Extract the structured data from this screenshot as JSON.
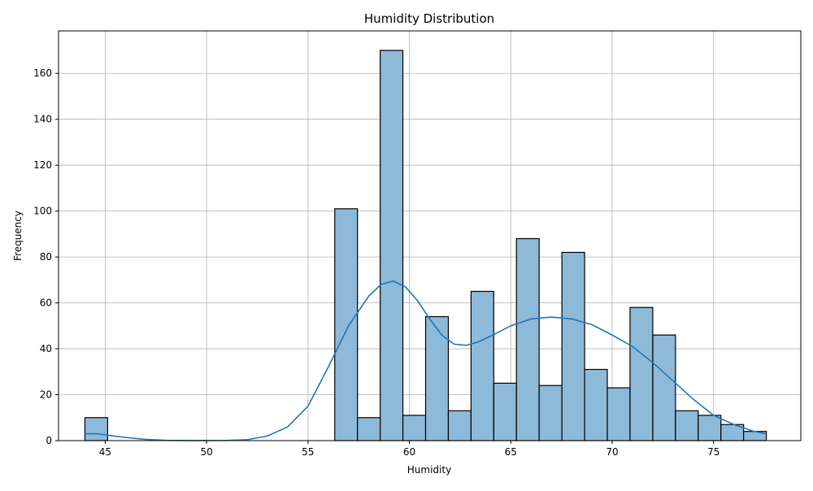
{
  "chart_data": {
    "type": "bar",
    "subtype": "histogram",
    "title": "Humidity Distribution",
    "xlabel": "Humidity",
    "ylabel": "Frequency",
    "xlim": [
      42.7,
      79.3
    ],
    "ylim": [
      0,
      178.5
    ],
    "x_ticks": [
      45,
      50,
      55,
      60,
      65,
      70,
      75
    ],
    "y_ticks": [
      0,
      20,
      40,
      60,
      80,
      100,
      120,
      140,
      160
    ],
    "grid": true,
    "bar_color": "#8ebad9",
    "line_color": "#1f77b4",
    "bins": [
      {
        "x0": 44.0,
        "x1": 45.12,
        "count": 10
      },
      {
        "x0": 45.12,
        "x1": 46.24,
        "count": 0
      },
      {
        "x0": 46.24,
        "x1": 47.36,
        "count": 0
      },
      {
        "x0": 47.36,
        "x1": 48.48,
        "count": 0
      },
      {
        "x0": 48.48,
        "x1": 49.6,
        "count": 0
      },
      {
        "x0": 49.6,
        "x1": 50.72,
        "count": 0
      },
      {
        "x0": 50.72,
        "x1": 51.84,
        "count": 0
      },
      {
        "x0": 51.84,
        "x1": 52.96,
        "count": 0
      },
      {
        "x0": 52.96,
        "x1": 54.08,
        "count": 0
      },
      {
        "x0": 54.08,
        "x1": 55.2,
        "count": 0
      },
      {
        "x0": 55.2,
        "x1": 56.32,
        "count": 0
      },
      {
        "x0": 56.32,
        "x1": 57.44,
        "count": 101
      },
      {
        "x0": 57.44,
        "x1": 58.56,
        "count": 10
      },
      {
        "x0": 58.56,
        "x1": 59.68,
        "count": 170
      },
      {
        "x0": 59.68,
        "x1": 60.8,
        "count": 11
      },
      {
        "x0": 60.8,
        "x1": 61.92,
        "count": 54
      },
      {
        "x0": 61.92,
        "x1": 63.04,
        "count": 13
      },
      {
        "x0": 63.04,
        "x1": 64.16,
        "count": 65
      },
      {
        "x0": 64.16,
        "x1": 65.28,
        "count": 25
      },
      {
        "x0": 65.28,
        "x1": 66.4,
        "count": 88
      },
      {
        "x0": 66.4,
        "x1": 67.52,
        "count": 24
      },
      {
        "x0": 67.52,
        "x1": 68.64,
        "count": 82
      },
      {
        "x0": 68.64,
        "x1": 69.76,
        "count": 31
      },
      {
        "x0": 69.76,
        "x1": 70.88,
        "count": 23
      },
      {
        "x0": 70.88,
        "x1": 72.0,
        "count": 58
      },
      {
        "x0": 72.0,
        "x1": 73.12,
        "count": 46
      },
      {
        "x0": 73.12,
        "x1": 74.24,
        "count": 13
      },
      {
        "x0": 74.24,
        "x1": 75.36,
        "count": 11
      },
      {
        "x0": 75.36,
        "x1": 76.48,
        "count": 7
      },
      {
        "x0": 76.48,
        "x1": 77.6,
        "count": 4
      }
    ],
    "kde_curve": {
      "x": [
        44.0,
        44.6,
        45.4,
        46.2,
        47.0,
        48.0,
        49.0,
        50.0,
        51.0,
        52.0,
        53.0,
        54.0,
        55.0,
        56.0,
        57.0,
        58.0,
        58.6,
        59.2,
        59.8,
        60.4,
        61.0,
        61.6,
        62.2,
        62.8,
        63.4,
        64.0,
        65.0,
        66.0,
        67.0,
        68.0,
        69.0,
        70.0,
        71.0,
        72.0,
        73.0,
        74.0,
        75.0,
        76.0,
        77.0,
        77.6
      ],
      "y": [
        3,
        3,
        2,
        1.2,
        0.5,
        0.1,
        0.02,
        0.02,
        0.05,
        0.4,
        2,
        6,
        15,
        32,
        50,
        63,
        68,
        69.5,
        67,
        61,
        53,
        46,
        42,
        41.5,
        43,
        45.5,
        50,
        53,
        53.8,
        53,
        50.5,
        46,
        41,
        34,
        26,
        18,
        11,
        7,
        4,
        3
      ]
    }
  }
}
